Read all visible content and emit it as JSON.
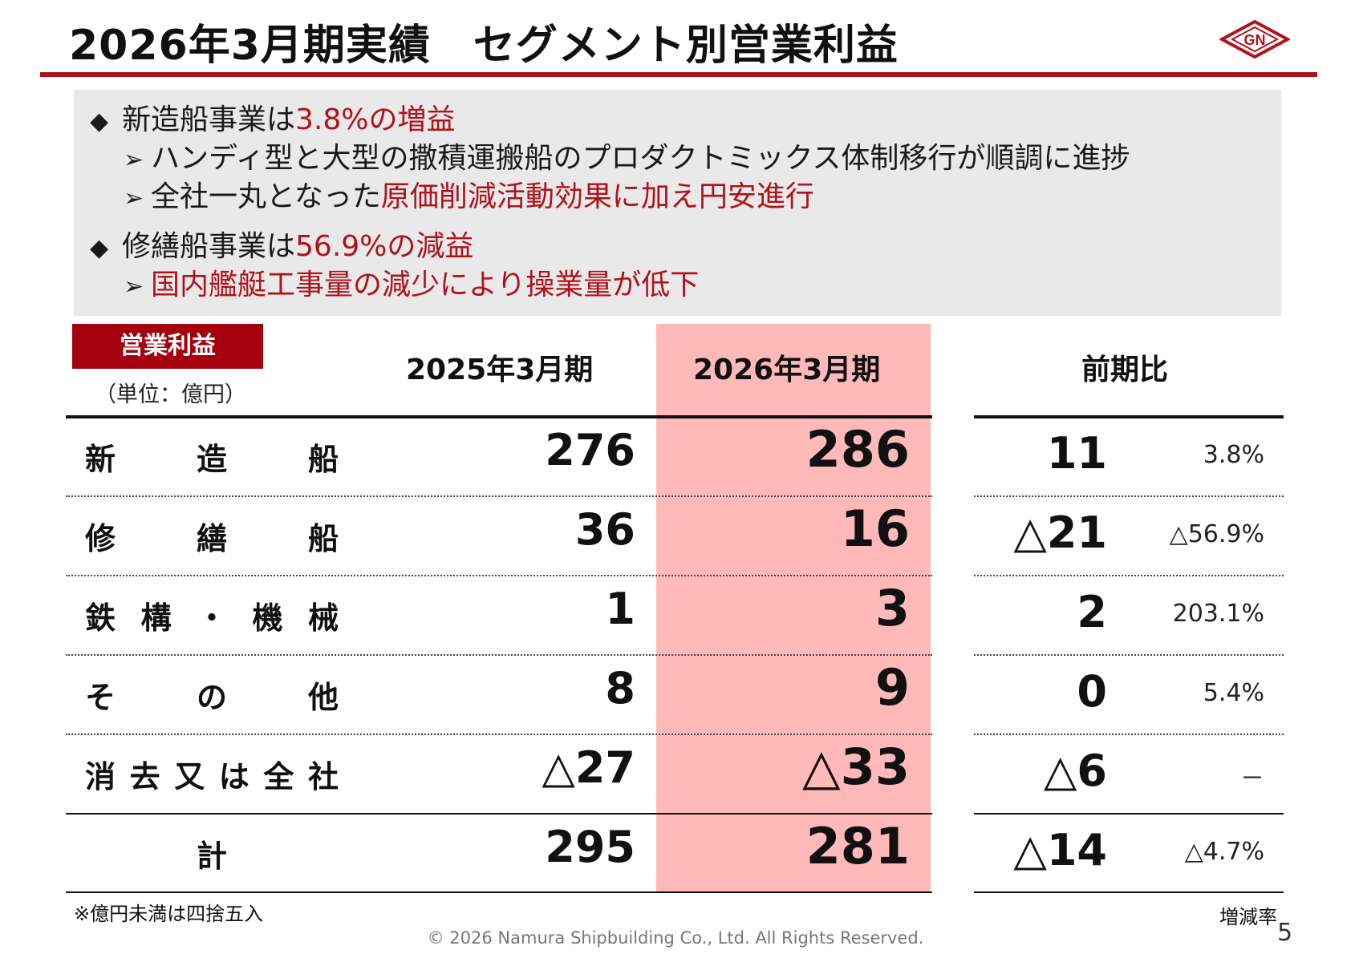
{
  "header": {
    "title": "2026年3月期実績　セグメント別営業利益",
    "logo_text": "GN",
    "accent_color": "#b0121b"
  },
  "summary": {
    "bullet_icon": "◆",
    "arrow_icon": "➢",
    "lines": [
      {
        "type": "bullet",
        "text": "新造船事業は",
        "highlight": "3.8%の増益",
        "after": ""
      },
      {
        "type": "sub",
        "text": "ハンディ型と大型の撒積運搬船のプロダクトミックス体制移行が順調に進捗",
        "highlight": "",
        "after": ""
      },
      {
        "type": "sub",
        "text": "全社一丸となった",
        "highlight": "原価削減活動効果に加え円安進行",
        "after": ""
      },
      {
        "type": "bullet",
        "text": "修繕船事業は",
        "highlight": "56.9%の減益",
        "after": ""
      },
      {
        "type": "sub",
        "text": "",
        "highlight": "国内艦艇工事量の減少により操業量が低下",
        "after": ""
      }
    ]
  },
  "table": {
    "badge": "営業利益",
    "unit": "（単位：億円）",
    "columns": {
      "prev": "2025年3月期",
      "curr": "2026年3月期",
      "diff": "前期比"
    },
    "highlight_color": "#ffb9b9",
    "rows": [
      {
        "label": "新造船",
        "prev": "276",
        "curr": "286",
        "diff": "11",
        "rate": "3.8%"
      },
      {
        "label": "修繕船",
        "prev": "36",
        "curr": "16",
        "diff": "△21",
        "rate": "△56.9%"
      },
      {
        "label": "鉄構・機械",
        "prev": "1",
        "curr": "3",
        "diff": "2",
        "rate": "203.1%"
      },
      {
        "label": "その他",
        "prev": "8",
        "curr": "9",
        "diff": "0",
        "rate": "5.4%"
      },
      {
        "label": "消去又は全社",
        "prev": "△27",
        "curr": "△33",
        "diff": "△6",
        "rate": "－"
      }
    ],
    "total": {
      "label": "計",
      "prev": "295",
      "curr": "281",
      "diff": "△14",
      "rate": "△4.7%"
    },
    "footnote": "※億円未満は四捨五入",
    "rate_label": "増減率"
  },
  "footer": {
    "copyright": "© 2026 Namura Shipbuilding Co., Ltd. All Rights Reserved.",
    "page": "5"
  }
}
